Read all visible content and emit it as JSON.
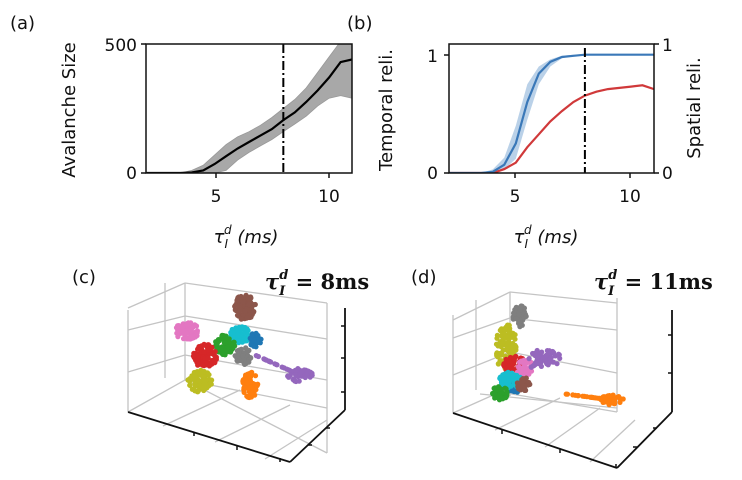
{
  "colors": {
    "mean_line": "#000000",
    "band": "#a8a8a8",
    "temporal": "#3a78b8",
    "temporal_band": "#a9c6e2",
    "spatial": "#d0393a",
    "clusters": [
      "#1f77b4",
      "#ff7f0e",
      "#2ca02c",
      "#d62728",
      "#9467bd",
      "#8c564b",
      "#e377c2",
      "#7f7f7f",
      "#bcbd22",
      "#17becf"
    ]
  },
  "chart_data": [
    {
      "panel": "(a)",
      "type": "line",
      "ylabel": "Avalanche Size",
      "xlabel": {
        "symbol": "τ",
        "sup": "d",
        "sub": "I",
        "unit": "(ms)"
      },
      "xlim": [
        2,
        11
      ],
      "ylim": [
        0,
        500
      ],
      "xticks": [
        "5",
        "10"
      ],
      "yticks": [
        "0",
        "500"
      ],
      "vline_x": 8,
      "x": [
        2,
        2.5,
        3,
        3.5,
        4,
        4.5,
        5,
        5.5,
        6,
        6.5,
        7,
        7.5,
        8,
        8.5,
        9,
        9.5,
        10,
        10.5,
        11
      ],
      "series": [
        {
          "name": "mean",
          "values": [
            0,
            0,
            0,
            0,
            2,
            10,
            35,
            65,
            95,
            120,
            145,
            170,
            205,
            235,
            275,
            320,
            370,
            430,
            440
          ]
        },
        {
          "name": "lower",
          "values": [
            0,
            0,
            0,
            0,
            0,
            0,
            0,
            10,
            50,
            80,
            105,
            130,
            160,
            190,
            220,
            260,
            290,
            300,
            290
          ]
        },
        {
          "name": "upper",
          "values": [
            0,
            0,
            0,
            0,
            10,
            30,
            70,
            110,
            140,
            160,
            185,
            215,
            250,
            285,
            330,
            390,
            450,
            510,
            510
          ]
        }
      ]
    },
    {
      "panel": "(b)",
      "type": "line",
      "ylabel_left": "Temporal reli.",
      "ylabel_right": "Spatial reli.",
      "xlabel": {
        "symbol": "τ",
        "sup": "d",
        "sub": "I",
        "unit": "(ms)"
      },
      "xlim": [
        2.1,
        11
      ],
      "ylim_left": [
        0,
        1.09
      ],
      "ylim_right": [
        0,
        1
      ],
      "xticks": [
        "5",
        "10"
      ],
      "yticks_left": [
        "0",
        "1"
      ],
      "yticks_right": [
        "0",
        "1"
      ],
      "vline_x": 8,
      "x": [
        2,
        2.5,
        3,
        3.5,
        4,
        4.5,
        5,
        5.5,
        6,
        6.5,
        7,
        7.5,
        8,
        8.5,
        9,
        9.5,
        10,
        10.5,
        11
      ],
      "series": [
        {
          "name": "Temporal reli.",
          "axis": "left",
          "values": [
            0,
            0,
            0,
            0,
            0.01,
            0.07,
            0.25,
            0.6,
            0.84,
            0.94,
            0.98,
            0.99,
            1,
            1,
            1,
            1,
            1,
            1,
            1
          ],
          "lower": [
            0,
            0,
            0,
            0,
            0,
            0.03,
            0.12,
            0.45,
            0.75,
            0.9,
            0.97,
            0.99,
            1,
            1,
            1,
            1,
            1,
            1,
            1
          ],
          "upper": [
            0,
            0,
            0,
            0,
            0.03,
            0.13,
            0.4,
            0.75,
            0.9,
            0.96,
            0.99,
            1,
            1,
            1,
            1,
            1,
            1,
            1,
            1
          ]
        },
        {
          "name": "Spatial reli.",
          "axis": "right",
          "values": [
            0,
            0,
            0,
            0,
            0,
            0.03,
            0.08,
            0.2,
            0.3,
            0.4,
            0.48,
            0.55,
            0.6,
            0.63,
            0.65,
            0.66,
            0.67,
            0.68,
            0.65
          ]
        }
      ]
    },
    {
      "panel": "(c)",
      "type": "scatter",
      "title": {
        "symbol": "τ",
        "sup": "d",
        "sub": "I",
        "rest": " = 8ms"
      },
      "n_clusters": 10
    },
    {
      "panel": "(d)",
      "type": "scatter",
      "title": {
        "symbol": "τ",
        "sup": "d",
        "sub": "I",
        "rest": " = 11ms"
      },
      "n_clusters": 10
    }
  ]
}
